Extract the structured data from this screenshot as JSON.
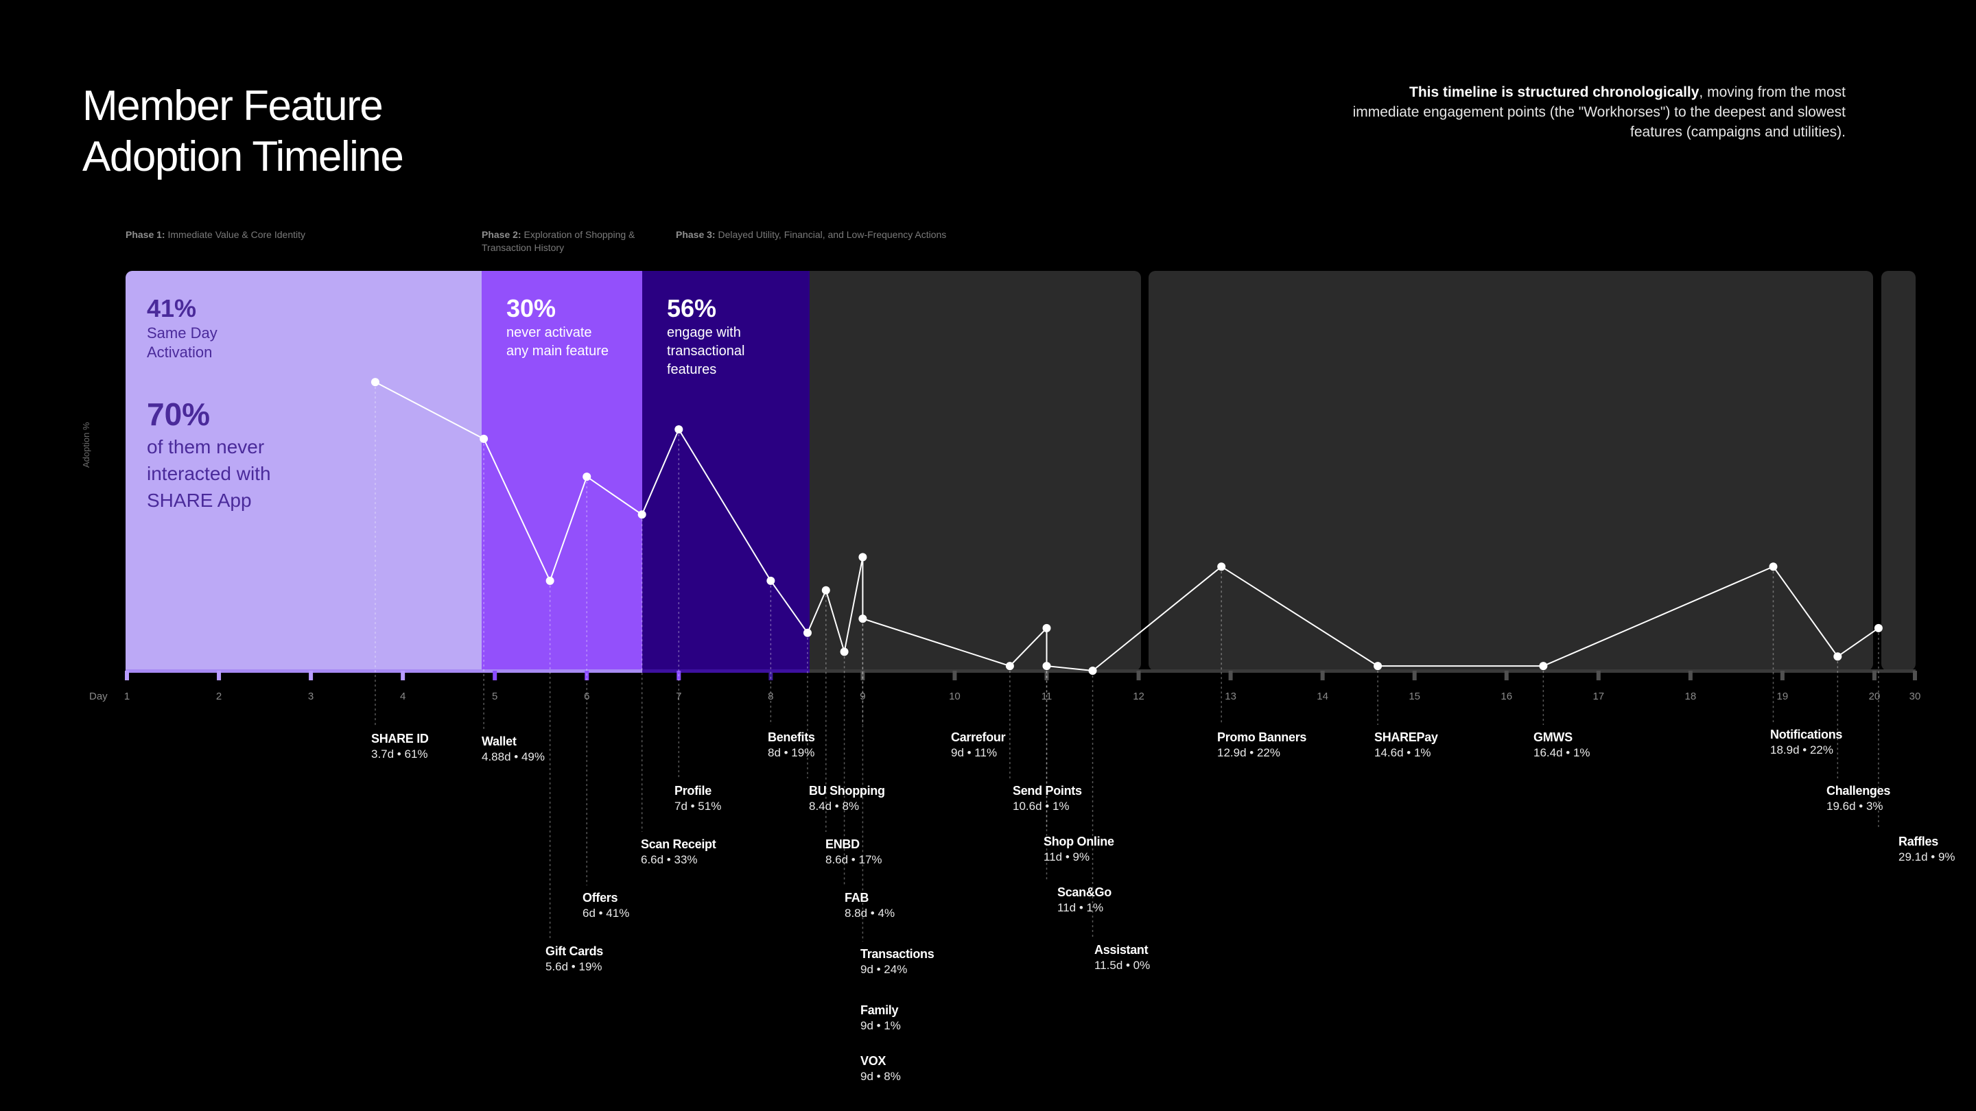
{
  "header": {
    "title_line1": "Member Feature",
    "title_line2": "Adoption Timeline",
    "intro_bold": "This timeline is structured chronologically",
    "intro_rest": ", moving from the most immediate engagement points (the \"Workhorses\") to the deepest and slowest features (campaigns and utilities)."
  },
  "phases": [
    {
      "label": "Phase 1:",
      "text": "Immediate Value & Core Identity"
    },
    {
      "label": "Phase 2:",
      "text": "Exploration of Shopping & Transaction History"
    },
    {
      "label": "Phase 3:",
      "text": "Delayed Utility, Financial, and Low-Frequency Actions"
    }
  ],
  "stats": {
    "phase1_pct": "41%",
    "phase1_text": "Same Day\nActivation",
    "phase1_big_pct": "70%",
    "phase1_big_text": "of them never\ninteracted with\nSHARE App",
    "phase2_pct": "30%",
    "phase2_text": "never activate\nany main feature",
    "phase3_pct": "56%",
    "phase3_text": "engage with\ntransactional\nfeatures"
  },
  "colors": {
    "background": "#000000",
    "phase1": "#bca9f6",
    "phase2": "#9350fb",
    "phase3": "#2a0082",
    "panel": "#2b2b2b",
    "line": "#ffffff",
    "phase1_text": "#4a2a9a"
  },
  "chart_data": {
    "type": "line",
    "title": "Member Feature Adoption Timeline",
    "xlabel": "Day",
    "ylabel": "Adoption %",
    "x_ticks": [
      "1",
      "2",
      "3",
      "4",
      "5",
      "6",
      "7",
      "8",
      "9",
      "10",
      "11",
      "12",
      "13",
      "14",
      "15",
      "16",
      "17",
      "18",
      "19",
      "20",
      "30"
    ],
    "ylim": [
      0,
      65
    ],
    "grid": false,
    "x_axis_break": "between 20 and 30",
    "series": [
      {
        "points": [
          {
            "name": "SHARE ID",
            "day": 3.7,
            "pct": 61,
            "label": "3.7d • 61%"
          },
          {
            "name": "Wallet",
            "day": 4.88,
            "pct": 49,
            "label": "4.88d • 49%"
          },
          {
            "name": "Gift Cards",
            "day": 5.6,
            "pct": 19,
            "label": "5.6d • 19%"
          },
          {
            "name": "Offers",
            "day": 6,
            "pct": 41,
            "label": "6d • 41%"
          },
          {
            "name": "Scan Receipt",
            "day": 6.6,
            "pct": 33,
            "label": "6.6d • 33%"
          },
          {
            "name": "Profile",
            "day": 7,
            "pct": 51,
            "label": "7d • 51%"
          },
          {
            "name": "Benefits",
            "day": 8,
            "pct": 19,
            "label": "8d • 19%"
          },
          {
            "name": "BU Shopping",
            "day": 8.4,
            "pct": 8,
            "label": "8.4d • 8%"
          },
          {
            "name": "ENBD",
            "day": 8.6,
            "pct": 17,
            "label": "8.6d • 17%"
          },
          {
            "name": "FAB",
            "day": 8.8,
            "pct": 4,
            "label": "8.8d • 4%"
          },
          {
            "name": "Transactions",
            "day": 9,
            "pct": 24,
            "label": "9d • 24%"
          },
          {
            "name": "Carrefour",
            "day": 9,
            "pct": 11,
            "label": "9d • 11%"
          },
          {
            "name": "Send Points",
            "day": 10.6,
            "pct": 1,
            "label": "10.6d • 1%"
          },
          {
            "name": "Shop Online",
            "day": 11,
            "pct": 9,
            "label": "11d • 9%"
          },
          {
            "name": "Scan&Go",
            "day": 11,
            "pct": 1,
            "label": "11d • 1%"
          },
          {
            "name": "Assistant",
            "day": 11.5,
            "pct": 0,
            "label": "11.5d • 0%"
          },
          {
            "name": "Promo Banners",
            "day": 12.9,
            "pct": 22,
            "label": "12.9d • 22%"
          },
          {
            "name": "SHAREPay",
            "day": 14.6,
            "pct": 1,
            "label": "14.6d • 1%"
          },
          {
            "name": "GMWS",
            "day": 16.4,
            "pct": 1,
            "label": "16.4d • 1%"
          },
          {
            "name": "Notifications",
            "day": 18.9,
            "pct": 22,
            "label": "18.9d • 22%"
          },
          {
            "name": "Challenges",
            "day": 19.6,
            "pct": 3,
            "label": "19.6d • 3%"
          },
          {
            "name": "Raffles",
            "day": 29.1,
            "pct": 9,
            "label": "29.1d • 9%"
          }
        ]
      }
    ],
    "unplotted": [
      {
        "name": "Family",
        "day": 9,
        "pct": 1,
        "label": "9d • 1%"
      },
      {
        "name": "VOX",
        "day": 9,
        "pct": 8,
        "label": "9d • 8%"
      }
    ]
  }
}
